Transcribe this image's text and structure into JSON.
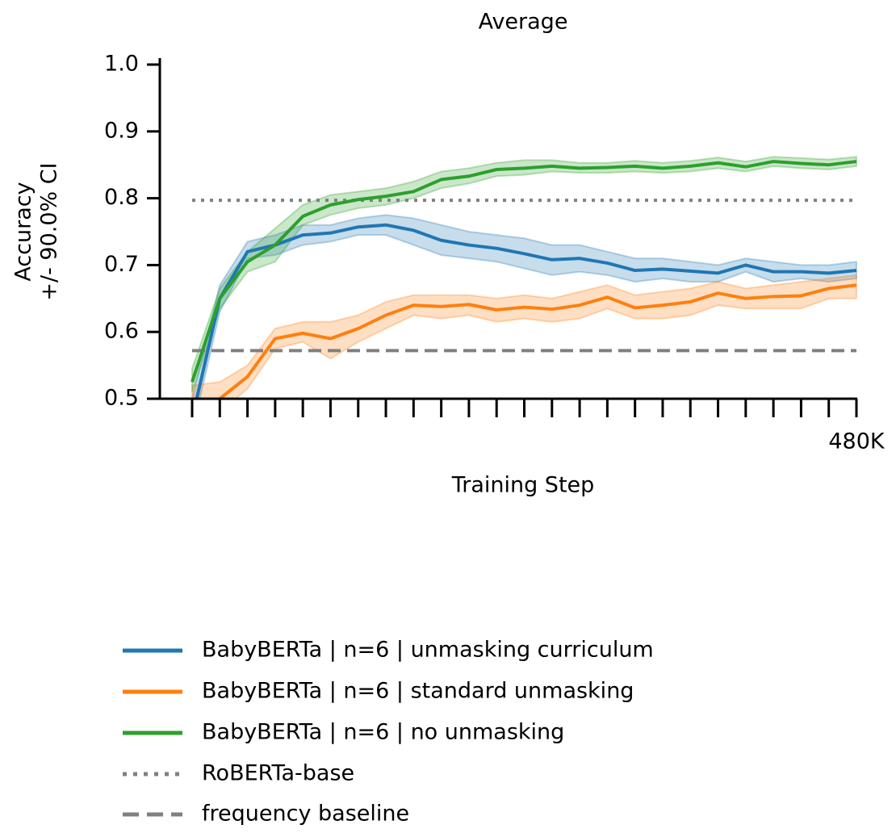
{
  "chart_data": {
    "type": "line",
    "title": "Average",
    "xlabel": "Training Step",
    "ylabel": [
      "Accuracy",
      "+/- 90.0% CI"
    ],
    "x": [
      0,
      20000,
      40000,
      60000,
      80000,
      100000,
      120000,
      140000,
      160000,
      180000,
      200000,
      220000,
      240000,
      260000,
      280000,
      300000,
      320000,
      340000,
      360000,
      380000,
      400000,
      420000,
      440000,
      460000,
      480000
    ],
    "xlim": [
      0,
      480000
    ],
    "xticks": [
      0,
      20000,
      40000,
      60000,
      80000,
      100000,
      120000,
      140000,
      160000,
      180000,
      200000,
      220000,
      240000,
      260000,
      280000,
      300000,
      320000,
      340000,
      360000,
      380000,
      400000,
      420000,
      440000,
      460000,
      {
        "value": 480000,
        "label": "480K"
      }
    ],
    "ylim": [
      0.5,
      1.0
    ],
    "yticks": [
      0.5,
      0.6,
      0.7,
      0.8,
      0.9,
      {
        "value": 1.0,
        "label": "1.0"
      }
    ],
    "series": [
      {
        "name": "BabyBERTa | n=6 | unmasking curriculum",
        "color": "#1f77b4",
        "values": [
          0.47,
          0.65,
          0.72,
          0.73,
          0.745,
          0.748,
          0.757,
          0.76,
          0.752,
          0.737,
          0.73,
          0.725,
          0.717,
          0.708,
          0.71,
          0.703,
          0.692,
          0.694,
          0.691,
          0.688,
          0.7,
          0.69,
          0.69,
          0.688,
          0.692
        ],
        "lower": [
          0.45,
          0.63,
          0.71,
          0.715,
          0.73,
          0.735,
          0.745,
          0.745,
          0.73,
          0.715,
          0.71,
          0.705,
          0.695,
          0.685,
          0.69,
          0.685,
          0.675,
          0.68,
          0.675,
          0.675,
          0.69,
          0.675,
          0.68,
          0.675,
          0.68
        ],
        "upper": [
          0.5,
          0.67,
          0.735,
          0.745,
          0.76,
          0.76,
          0.77,
          0.775,
          0.77,
          0.76,
          0.75,
          0.745,
          0.74,
          0.73,
          0.73,
          0.72,
          0.71,
          0.71,
          0.705,
          0.7,
          0.71,
          0.705,
          0.7,
          0.7,
          0.705
        ]
      },
      {
        "name": "BabyBERTa | n=6 | standard unmasking",
        "color": "#ff7f0e",
        "values": [
          0.49,
          0.5,
          0.533,
          0.59,
          0.598,
          0.59,
          0.605,
          0.625,
          0.64,
          0.638,
          0.641,
          0.633,
          0.637,
          0.634,
          0.64,
          0.652,
          0.636,
          0.64,
          0.645,
          0.658,
          0.65,
          0.653,
          0.654,
          0.665,
          0.67
        ],
        "lower": [
          0.47,
          0.48,
          0.515,
          0.575,
          0.585,
          0.56,
          0.585,
          0.605,
          0.625,
          0.62,
          0.625,
          0.615,
          0.62,
          0.615,
          0.62,
          0.635,
          0.62,
          0.62,
          0.625,
          0.64,
          0.635,
          0.635,
          0.635,
          0.65,
          0.65
        ],
        "upper": [
          0.52,
          0.525,
          0.55,
          0.605,
          0.615,
          0.615,
          0.625,
          0.645,
          0.655,
          0.655,
          0.655,
          0.65,
          0.655,
          0.65,
          0.66,
          0.67,
          0.655,
          0.66,
          0.665,
          0.675,
          0.665,
          0.67,
          0.675,
          0.68,
          0.685
        ]
      },
      {
        "name": "BabyBERTa | n=6 | no unmasking",
        "color": "#2ca02c",
        "values": [
          0.525,
          0.65,
          0.705,
          0.73,
          0.773,
          0.79,
          0.798,
          0.803,
          0.81,
          0.828,
          0.833,
          0.843,
          0.845,
          0.848,
          0.845,
          0.846,
          0.848,
          0.845,
          0.848,
          0.853,
          0.847,
          0.855,
          0.852,
          0.85,
          0.855
        ],
        "lower": [
          0.51,
          0.635,
          0.69,
          0.705,
          0.76,
          0.775,
          0.785,
          0.79,
          0.8,
          0.815,
          0.822,
          0.833,
          0.835,
          0.84,
          0.838,
          0.838,
          0.84,
          0.838,
          0.84,
          0.845,
          0.84,
          0.848,
          0.845,
          0.843,
          0.848
        ],
        "upper": [
          0.545,
          0.665,
          0.72,
          0.755,
          0.79,
          0.805,
          0.81,
          0.815,
          0.825,
          0.84,
          0.845,
          0.853,
          0.857,
          0.857,
          0.853,
          0.853,
          0.856,
          0.853,
          0.856,
          0.861,
          0.855,
          0.862,
          0.86,
          0.858,
          0.862
        ]
      }
    ],
    "reference_lines": [
      {
        "name": "RoBERTa-base",
        "value": 0.797,
        "color": "#808080",
        "style": "dotted"
      },
      {
        "name": "frequency baseline",
        "value": 0.572,
        "color": "#808080",
        "style": "dashed"
      }
    ]
  }
}
